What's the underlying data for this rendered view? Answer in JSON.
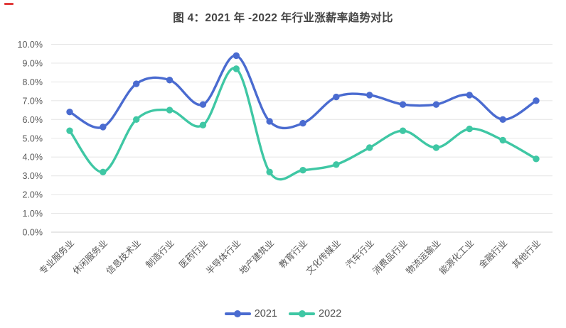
{
  "page": {
    "title": "图 4：2021 年 -2022 年行业涨薪率趋势对比"
  },
  "chart_data": {
    "type": "line",
    "title": "图 4：2021 年 -2022 年行业涨薪率趋势对比",
    "smooth": true,
    "grid": true,
    "legend_position": "bottom-center",
    "xlabel": "",
    "ylabel": "",
    "ylim": [
      0,
      10
    ],
    "ytick_step": 1,
    "ytick_labels": [
      "0.0%",
      "1.0%",
      "2.0%",
      "3.0%",
      "4.0%",
      "5.0%",
      "6.0%",
      "7.0%",
      "8.0%",
      "9.0%",
      "10.0%"
    ],
    "categories": [
      "专业服务业",
      "休闲服务业",
      "信息技术业",
      "制造行业",
      "医药行业",
      "半导体行业",
      "地产建筑业",
      "教育行业",
      "文化传媒业",
      "汽车行业",
      "消费品行业",
      "物流运输业",
      "能源化工业",
      "金融行业",
      "其他行业"
    ],
    "series": [
      {
        "name": "2021",
        "color": "#4a6bd0",
        "values": [
          6.4,
          5.6,
          7.9,
          8.1,
          6.8,
          9.4,
          5.9,
          5.8,
          7.2,
          7.3,
          6.8,
          6.8,
          7.3,
          6.0,
          7.0
        ]
      },
      {
        "name": "2022",
        "color": "#3fc7a4",
        "values": [
          5.4,
          3.2,
          6.0,
          6.5,
          5.7,
          8.7,
          3.2,
          3.3,
          3.6,
          4.5,
          5.4,
          4.5,
          5.5,
          4.9,
          3.9
        ]
      }
    ],
    "colors": {
      "grid_line": "#e7e7e7",
      "axis_line": "#cfcfcf",
      "tick_text": "#595959",
      "title_text": "#454545"
    }
  }
}
